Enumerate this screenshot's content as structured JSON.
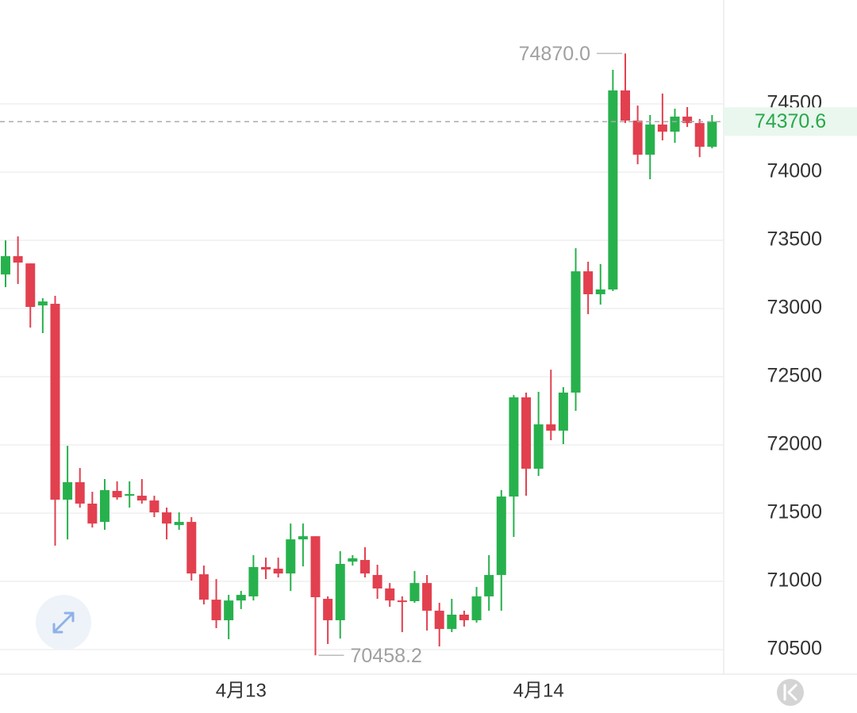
{
  "chart_data": {
    "type": "candlestick",
    "categories": [
      null,
      null,
      null,
      null,
      null,
      null,
      null,
      null,
      null,
      null,
      null,
      null,
      null,
      null,
      null,
      null,
      null,
      null,
      null,
      "4月13",
      null,
      null,
      null,
      null,
      null,
      null,
      null,
      null,
      null,
      null,
      null,
      null,
      null,
      null,
      null,
      null,
      null,
      null,
      null,
      null,
      null,
      null,
      null,
      "4月14",
      null,
      null,
      null,
      null,
      null,
      null,
      null,
      null,
      null,
      null,
      null,
      null,
      null,
      null
    ],
    "open": [
      73250,
      73384,
      73331,
      73023,
      73035,
      71599,
      71727,
      71570,
      71436,
      71663,
      71628,
      71628,
      71593,
      71506,
      71413,
      71436,
      71052,
      70866,
      70715,
      70860,
      70890,
      71105,
      71093,
      71058,
      71308,
      71331,
      70872,
      70715,
      71145,
      71157,
      71047,
      70948,
      70860,
      70855,
      70988,
      70785,
      70651,
      70756,
      70715,
      70890,
      71047,
      71622,
      72349,
      71826,
      72151,
      72105,
      72384,
      73273,
      73105,
      73140,
      74599,
      74378,
      74128,
      74349,
      74297,
      74407,
      74360,
      74186
    ],
    "high": [
      73500,
      73529,
      73331,
      73076,
      73093,
      71994,
      71831,
      71657,
      71750,
      71733,
      71733,
      71750,
      71628,
      71541,
      71506,
      71471,
      71116,
      71017,
      70901,
      70930,
      71192,
      71174,
      71174,
      71424,
      71424,
      71331,
      70890,
      71221,
      71192,
      71250,
      71122,
      70988,
      70890,
      71076,
      71047,
      70843,
      70872,
      70785,
      70959,
      71192,
      71669,
      72366,
      72384,
      72390,
      72552,
      72424,
      73442,
      73343,
      73326,
      74750,
      74870,
      74488,
      74419,
      74576,
      74465,
      74477,
      74390,
      74419
    ],
    "low": [
      73157,
      73180,
      72861,
      72820,
      71262,
      71308,
      71541,
      71395,
      71378,
      71599,
      71541,
      71570,
      71471,
      71308,
      71378,
      71006,
      70831,
      70657,
      70576,
      70797,
      70860,
      71017,
      71029,
      70930,
      71110,
      70458.2,
      70541,
      70581,
      71116,
      71029,
      70872,
      70814,
      70628,
      70843,
      70640,
      70523,
      70628,
      70669,
      70698,
      70785,
      70785,
      71326,
      71628,
      71773,
      72035,
      72006,
      72250,
      72959,
      73029,
      73128,
      74360,
      74058,
      73948,
      74233,
      74215,
      74331,
      74110,
      74175
    ],
    "close": [
      73384,
      73337,
      73012,
      73052,
      71599,
      71727,
      71570,
      71424,
      71669,
      71616,
      71640,
      71593,
      71506,
      71424,
      71436,
      71058,
      70866,
      70715,
      70860,
      70901,
      71105,
      71087,
      71058,
      71308,
      71331,
      70884,
      70715,
      71128,
      71169,
      71058,
      70948,
      70860,
      70855,
      70988,
      70785,
      70651,
      70756,
      70715,
      70890,
      71047,
      71622,
      72349,
      71826,
      72151,
      72105,
      72384,
      73273,
      73105,
      73140,
      74599,
      74378,
      74128,
      74349,
      74297,
      74407,
      74360,
      74186,
      74370.6
    ],
    "up_color": "#27b14d",
    "down_color": "#e2404f",
    "ylim": [
      70320,
      75262
    ],
    "yticks": [
      70500,
      71000,
      71500,
      72000,
      72500,
      73000,
      73500,
      74000,
      74500
    ],
    "grid": true,
    "annotations": [
      {
        "label": "74870.0",
        "value": 74870
      },
      {
        "label": "70458.2",
        "value": 70458.2
      }
    ],
    "last_price": 74370.6
  }
}
